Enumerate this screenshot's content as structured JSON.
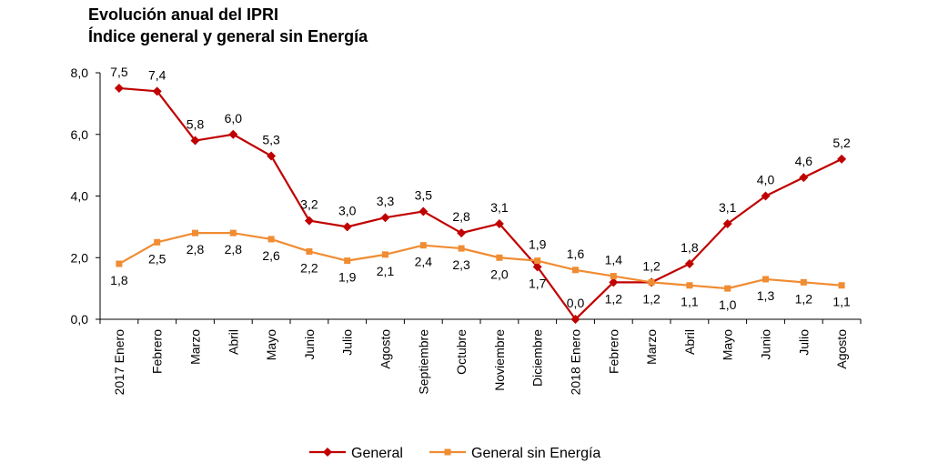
{
  "title": "Evolución anual del IPRI",
  "subtitle": "Índice general y general sin Energía",
  "chart_data": {
    "type": "line",
    "categories": [
      "2017 Enero",
      "Febrero",
      "Marzo",
      "Abril",
      "Mayo",
      "Junio",
      "Julio",
      "Agosto",
      "Septiembre",
      "Octubre",
      "Noviembre",
      "Diciembre",
      "2018 Enero",
      "Febrero",
      "Marzo",
      "Abril",
      "Mayo",
      "Junio",
      "Julio",
      "Agosto"
    ],
    "ylim": [
      0,
      8
    ],
    "yticks": [
      "0,0",
      "2,0",
      "4,0",
      "6,0",
      "8,0"
    ],
    "grid": false,
    "legend_position": "bottom",
    "series": [
      {
        "name": "General",
        "color": "#C00000",
        "marker": "diamond",
        "values": [
          7.5,
          7.4,
          5.8,
          6.0,
          5.3,
          3.2,
          3.0,
          3.3,
          3.5,
          2.8,
          3.1,
          1.7,
          0.0,
          1.2,
          1.2,
          1.8,
          3.1,
          4.0,
          4.6,
          5.2
        ],
        "labels": [
          "7,5",
          "7,4",
          "5,8",
          "6,0",
          "5,3",
          "3,2",
          "3,0",
          "3,3",
          "3,5",
          "2,8",
          "3,1",
          "1,7",
          "0,0",
          "1,2",
          "1,2",
          "1,8",
          "3,1",
          "4,0",
          "4,6",
          "5,2"
        ],
        "label_pos": [
          "above",
          "above",
          "above",
          "above",
          "above",
          "above",
          "above",
          "above",
          "above",
          "above",
          "above",
          "below",
          "above",
          "below",
          "above",
          "above",
          "above",
          "above",
          "above",
          "above"
        ]
      },
      {
        "name": "General sin Energía",
        "color": "#F08C32",
        "marker": "square",
        "values": [
          1.8,
          2.5,
          2.8,
          2.8,
          2.6,
          2.2,
          1.9,
          2.1,
          2.4,
          2.3,
          2.0,
          1.9,
          1.6,
          1.4,
          1.2,
          1.1,
          1.0,
          1.3,
          1.2,
          1.1
        ],
        "labels": [
          "1,8",
          "2,5",
          "2,8",
          "2,8",
          "2,6",
          "2,2",
          "1,9",
          "2,1",
          "2,4",
          "2,3",
          "2,0",
          "1,9",
          "1,6",
          "1,4",
          "1,2",
          "1,1",
          "1,0",
          "1,3",
          "1,2",
          "1,1"
        ],
        "label_pos": [
          "below",
          "below",
          "below",
          "below",
          "below",
          "below",
          "below",
          "below",
          "below",
          "below",
          "below",
          "above",
          "above",
          "above",
          "below",
          "below",
          "below",
          "below",
          "below",
          "below"
        ]
      }
    ]
  }
}
